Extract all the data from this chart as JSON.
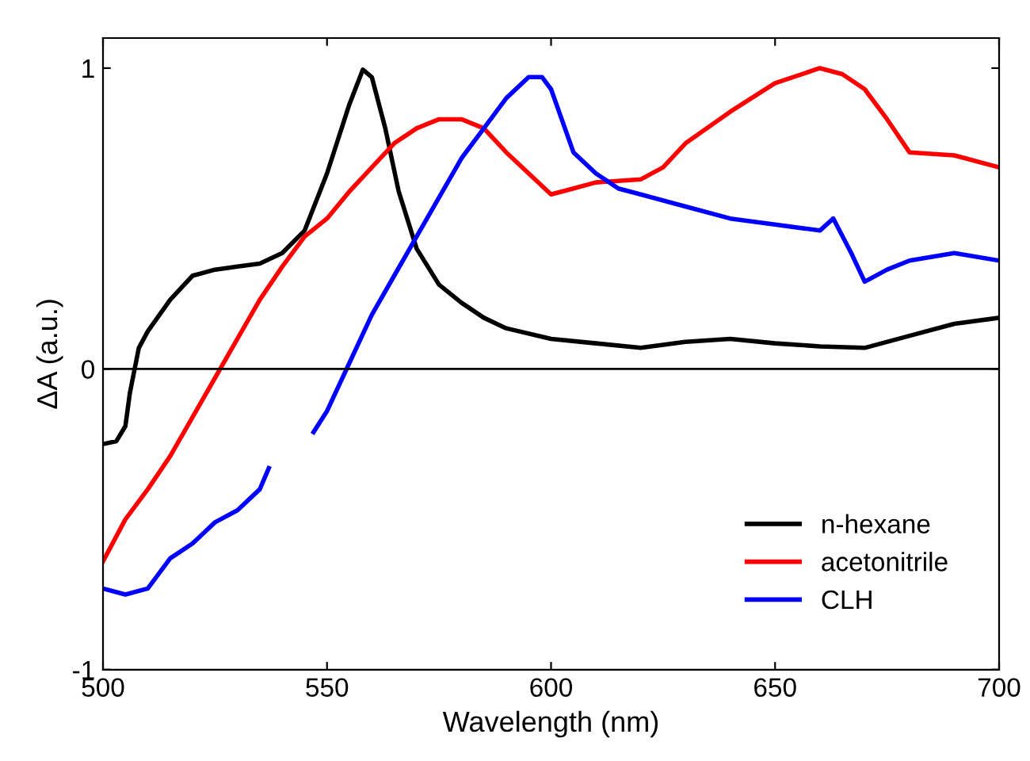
{
  "chart_data": {
    "type": "line",
    "xlabel": "Wavelength (nm)",
    "ylabel": "ΔA (a.u.)",
    "xlim": [
      500,
      700
    ],
    "xticks": [
      500,
      550,
      600,
      650,
      700
    ],
    "ylim": [
      -1,
      1.1
    ],
    "yticks": [
      -1,
      0,
      1
    ],
    "grid": false,
    "legend": "bottom right",
    "marker": "none",
    "line_style": "solid",
    "ref_lines": [
      {
        "axis": "y",
        "value": 0,
        "color": "#000000"
      }
    ],
    "series": [
      {
        "name": "n-hexane",
        "color": "#000000",
        "x": [
          500,
          503,
          505,
          506,
          508,
          510,
          515,
          520,
          525,
          530,
          535,
          540,
          545,
          550,
          555,
          558,
          560,
          563,
          566,
          570,
          575,
          580,
          585,
          590,
          600,
          610,
          620,
          630,
          640,
          650,
          660,
          670,
          680,
          690,
          700
        ],
        "values": [
          -0.25,
          -0.24,
          -0.19,
          -0.08,
          0.07,
          0.125,
          0.23,
          0.31,
          0.33,
          0.34,
          0.35,
          0.385,
          0.46,
          0.65,
          0.88,
          0.995,
          0.97,
          0.8,
          0.59,
          0.4,
          0.28,
          0.22,
          0.17,
          0.135,
          0.1,
          0.085,
          0.07,
          0.09,
          0.1,
          0.085,
          0.075,
          0.07,
          0.11,
          0.15,
          0.17
        ]
      },
      {
        "name": "acetonitrile",
        "color": "#ff0000",
        "x": [
          500,
          505,
          510,
          515,
          520,
          525,
          530,
          535,
          540,
          545,
          550,
          555,
          560,
          565,
          570,
          575,
          580,
          585,
          590,
          595,
          600,
          605,
          610,
          620,
          625,
          630,
          640,
          650,
          660,
          665,
          670,
          675,
          680,
          690,
          700
        ],
        "values": [
          -0.64,
          -0.5,
          -0.4,
          -0.29,
          -0.16,
          -0.03,
          0.1,
          0.23,
          0.34,
          0.44,
          0.5,
          0.59,
          0.67,
          0.75,
          0.8,
          0.83,
          0.83,
          0.8,
          0.72,
          0.65,
          0.58,
          0.6,
          0.62,
          0.63,
          0.67,
          0.75,
          0.855,
          0.95,
          1.0,
          0.98,
          0.93,
          0.83,
          0.72,
          0.71,
          0.67
        ]
      },
      {
        "name": "CLH",
        "color": "#0000ff",
        "x": [
          500,
          505,
          510,
          515,
          520,
          525,
          530,
          535,
          537,
          542,
          547,
          550,
          555,
          560,
          565,
          570,
          575,
          580,
          585,
          590,
          595,
          598,
          600,
          605,
          610,
          615,
          620,
          630,
          640,
          650,
          660,
          663,
          667,
          670,
          675,
          680,
          690,
          700
        ],
        "values": [
          -0.73,
          -0.75,
          -0.73,
          -0.63,
          -0.58,
          -0.51,
          -0.47,
          -0.4,
          -0.33,
          null,
          -0.21,
          -0.14,
          0.02,
          0.18,
          0.31,
          0.44,
          0.57,
          0.7,
          0.8,
          0.9,
          0.97,
          0.97,
          0.93,
          0.72,
          0.65,
          0.6,
          0.58,
          0.54,
          0.5,
          0.48,
          0.46,
          0.5,
          0.385,
          0.29,
          0.33,
          0.36,
          0.385,
          0.36
        ]
      }
    ]
  }
}
